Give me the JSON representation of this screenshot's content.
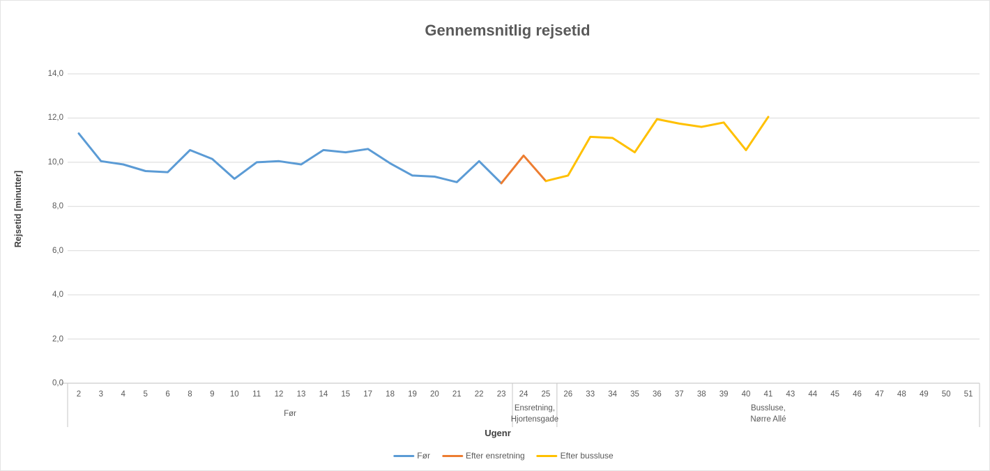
{
  "chart_data": {
    "type": "line",
    "title": "Gennemsnitlig rejsetid",
    "xlabel": "Ugenr",
    "ylabel": "Rejsetid [minutter]",
    "ylim": [
      0,
      14
    ],
    "grid": true,
    "legend_position": "bottom",
    "yticks": [
      {
        "value": 0,
        "label": "0,0"
      },
      {
        "value": 2,
        "label": "2,0"
      },
      {
        "value": 4,
        "label": "4,0"
      },
      {
        "value": 6,
        "label": "6,0"
      },
      {
        "value": 8,
        "label": "8,0"
      },
      {
        "value": 10,
        "label": "10,0"
      },
      {
        "value": 12,
        "label": "12,0"
      },
      {
        "value": 14,
        "label": "14,0"
      }
    ],
    "categories": [
      "2",
      "3",
      "4",
      "5",
      "6",
      "8",
      "9",
      "10",
      "11",
      "12",
      "13",
      "14",
      "15",
      "17",
      "18",
      "19",
      "20",
      "21",
      "22",
      "23",
      "24",
      "25",
      "26",
      "33",
      "34",
      "35",
      "36",
      "37",
      "38",
      "39",
      "40",
      "41",
      "43",
      "44",
      "45",
      "46",
      "47",
      "48",
      "49",
      "50",
      "51"
    ],
    "groups": [
      {
        "lines": [
          "Før"
        ],
        "start": 0,
        "end": 19
      },
      {
        "lines": [
          "Ensretning,",
          "Hjortensgade"
        ],
        "start": 20,
        "end": 21
      },
      {
        "lines": [
          "Bussluse,",
          "Nørre Allé"
        ],
        "start": 22,
        "end": 40
      }
    ],
    "series": [
      {
        "name": "Før",
        "color": "#5B9BD5",
        "start_index": 0,
        "weeks": [
          "2",
          "3",
          "4",
          "5",
          "6",
          "8",
          "9",
          "10",
          "11",
          "12",
          "13",
          "14",
          "15",
          "17",
          "18",
          "19",
          "20",
          "21",
          "22",
          "23"
        ],
        "values": [
          11.3,
          10.05,
          9.9,
          9.6,
          9.55,
          10.55,
          10.15,
          9.25,
          10.0,
          10.05,
          9.9,
          10.55,
          10.45,
          10.6,
          9.95,
          9.4,
          9.35,
          9.1,
          10.05,
          9.05
        ]
      },
      {
        "name": "Efter ensretning",
        "color": "#ED7D31",
        "start_index": 19,
        "weeks": [
          "23",
          "24",
          "25"
        ],
        "values": [
          9.05,
          10.3,
          9.15
        ]
      },
      {
        "name": "Efter bussluse",
        "color": "#FFC000",
        "start_index": 21,
        "weeks": [
          "25",
          "26",
          "33",
          "34",
          "35",
          "36",
          "37",
          "38",
          "39",
          "40",
          "41"
        ],
        "values": [
          9.15,
          9.4,
          11.15,
          11.1,
          10.45,
          11.95,
          11.75,
          11.6,
          11.8,
          10.55,
          12.05
        ]
      }
    ],
    "colors": {
      "gridline": "#d9d9d9",
      "axis_line": "#bfbfbf",
      "separator": "#c6c6c6",
      "text": "#595959"
    }
  }
}
